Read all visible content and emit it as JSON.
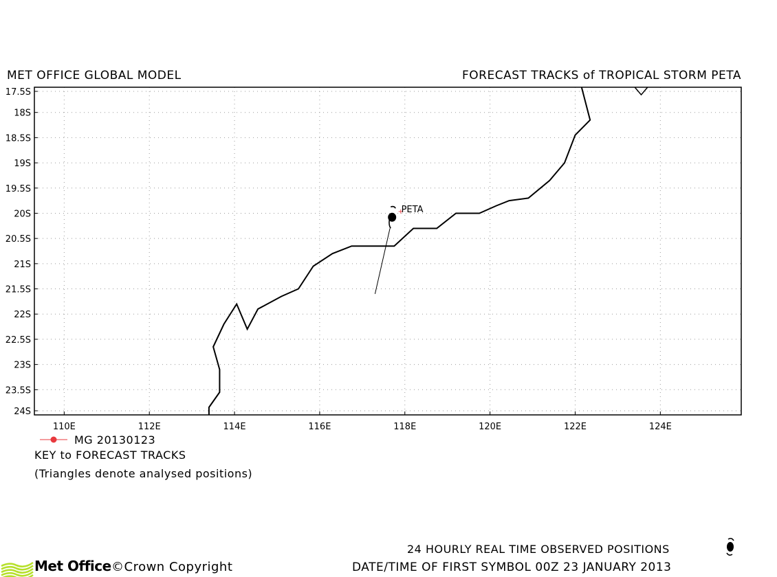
{
  "header": {
    "left_title": "MET OFFICE GLOBAL MODEL",
    "right_title": "FORECAST TRACKS of TROPICAL STORM PETA"
  },
  "map": {
    "lon_range": [
      109.3,
      125.9
    ],
    "lat_range": [
      -24,
      -17.5
    ],
    "lon_ticks": [
      110,
      112,
      114,
      116,
      118,
      120,
      122,
      124
    ],
    "lon_tick_labels": [
      "110E",
      "112E",
      "114E",
      "116E",
      "118E",
      "120E",
      "122E",
      "124E"
    ],
    "lat_ticks": [
      -17.5,
      -18,
      -18.5,
      -19,
      -19.5,
      -20,
      -20.5,
      -21,
      -21.5,
      -22,
      -22.5,
      -23,
      -23.5,
      -24
    ],
    "lat_tick_labels": [
      "17.5S",
      "18S",
      "18.5S",
      "19S",
      "19.5S",
      "20S",
      "20.5S",
      "21S",
      "21.5S",
      "22S",
      "22.5S",
      "23S",
      "23.5S",
      "24S"
    ],
    "grid": true,
    "coastline": [
      [
        113.4,
        -24.0
      ],
      [
        113.4,
        -23.85
      ],
      [
        113.65,
        -23.55
      ],
      [
        113.65,
        -23.1
      ],
      [
        113.5,
        -22.65
      ],
      [
        113.75,
        -22.2
      ],
      [
        114.05,
        -21.8
      ],
      [
        114.3,
        -22.3
      ],
      [
        114.55,
        -21.9
      ],
      [
        115.1,
        -21.65
      ],
      [
        115.5,
        -21.5
      ],
      [
        115.85,
        -21.05
      ],
      [
        116.3,
        -20.8
      ],
      [
        116.75,
        -20.65
      ],
      [
        117.75,
        -20.65
      ],
      [
        118.2,
        -20.3
      ],
      [
        118.75,
        -20.3
      ],
      [
        119.2,
        -20.0
      ],
      [
        119.75,
        -20.0
      ],
      [
        120.15,
        -19.85
      ],
      [
        120.45,
        -19.75
      ],
      [
        120.9,
        -19.7
      ],
      [
        121.4,
        -19.35
      ],
      [
        121.75,
        -19.0
      ],
      [
        122.0,
        -18.45
      ],
      [
        122.35,
        -18.15
      ],
      [
        122.15,
        -17.5
      ]
    ],
    "coastline_extra": [
      [
        123.4,
        -17.5
      ],
      [
        123.55,
        -17.65
      ],
      [
        123.7,
        -17.5
      ]
    ],
    "storm": {
      "name": "PETA",
      "label_lon": 117.9,
      "label_lat": -19.95,
      "observed": {
        "lon": 117.7,
        "lat": -20.08
      },
      "track": [
        [
          117.65,
          -20.3
        ],
        [
          117.3,
          -21.6
        ]
      ]
    }
  },
  "legend": {
    "series_label": "MG 20130123",
    "series_color": "#e8393e",
    "key_title": "KEY to FORECAST TRACKS",
    "key_note": "(Triangles denote analysed positions)"
  },
  "footer": {
    "observed_label": "24 HOURLY REAL TIME OBSERVED POSITIONS",
    "date_label": "DATE/TIME OF FIRST SYMBOL 00Z 23 JANUARY 2013",
    "logo_text": "Met Office",
    "copyright": "©Crown Copyright",
    "logo_color": "#b6e02b"
  }
}
